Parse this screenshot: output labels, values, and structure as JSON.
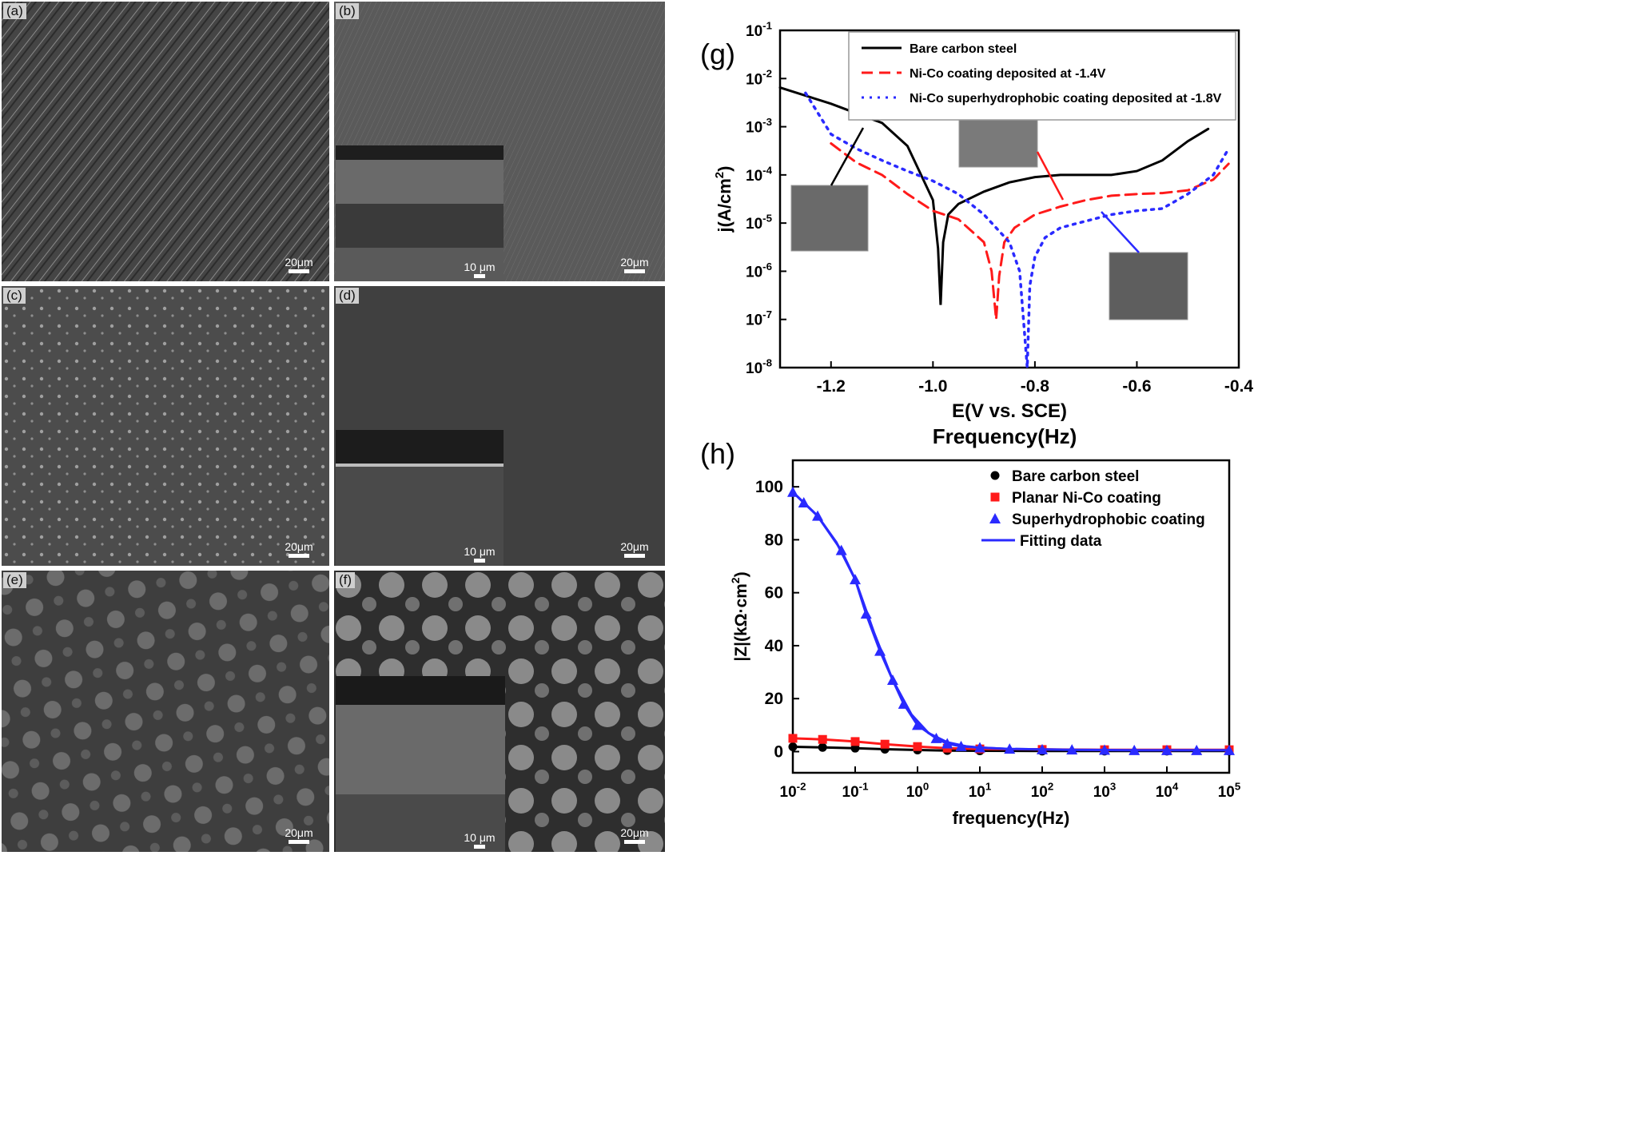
{
  "figure": {
    "panels": {
      "a": {
        "tag": "(a)",
        "scale": "20μm"
      },
      "b": {
        "tag": "(b)",
        "scale": "20μm",
        "inset_scale": "10 μm"
      },
      "c": {
        "tag": "(c)",
        "scale": "20μm"
      },
      "d": {
        "tag": "(d)",
        "scale": "20μm",
        "inset_scale": "10 μm"
      },
      "e": {
        "tag": "(e)",
        "scale": "20μm"
      },
      "f": {
        "tag": "(f)",
        "scale": "20μm",
        "inset_scale": "10 μm"
      }
    }
  },
  "colors": {
    "black": "#000000",
    "red": "#ff1a1a",
    "blue": "#2a2aff",
    "sem_bg": "#3a3a3a"
  },
  "chart_data": [
    {
      "type": "line",
      "panel_label": "(g)",
      "title": "",
      "xlabel": "E(V vs. SCE)",
      "ylabel": "j(A/cm2)",
      "xlim": [
        -1.3,
        -0.4
      ],
      "ylim": [
        1e-08,
        0.1
      ],
      "yscale": "log",
      "x_ticks": [
        "-1.2",
        "-1.0",
        "-0.8",
        "-0.6",
        "-0.4"
      ],
      "y_ticks": [
        "10-8",
        "10-7",
        "10-6",
        "10-5",
        "10-4",
        "10-3",
        "10-2",
        "10-1"
      ],
      "legend_position": "top-right",
      "series": [
        {
          "name": "Bare carbon steel",
          "style": "solid",
          "x": [
            -1.3,
            -1.2,
            -1.1,
            -1.05,
            -1.0,
            -0.99,
            -0.985,
            -0.98,
            -0.97,
            -0.95,
            -0.9,
            -0.85,
            -0.8,
            -0.75,
            -0.7,
            -0.65,
            -0.6,
            -0.55,
            -0.5,
            -0.46
          ],
          "y": [
            0.0065,
            0.003,
            0.0012,
            0.0004,
            3e-05,
            3e-06,
            2e-07,
            4e-06,
            1.5e-05,
            2.5e-05,
            4.5e-05,
            7e-05,
            9e-05,
            0.0001,
            0.0001,
            0.0001,
            0.00012,
            0.0002,
            0.0005,
            0.0009
          ]
        },
        {
          "name": "Ni-Co coating deposited at -1.4V",
          "style": "dashed",
          "x": [
            -1.2,
            -1.15,
            -1.1,
            -1.05,
            -1.0,
            -0.95,
            -0.9,
            -0.885,
            -0.876,
            -0.87,
            -0.86,
            -0.84,
            -0.8,
            -0.75,
            -0.7,
            -0.65,
            -0.6,
            -0.55,
            -0.5,
            -0.45,
            -0.42
          ],
          "y": [
            0.00045,
            0.00018,
            0.0001,
            4e-05,
            1.8e-05,
            1.2e-05,
            4e-06,
            1e-06,
            1e-07,
            8e-07,
            4e-06,
            8e-06,
            1.5e-05,
            2.2e-05,
            3e-05,
            3.7e-05,
            4e-05,
            4.2e-05,
            4.8e-05,
            8e-05,
            0.00017
          ]
        },
        {
          "name": "Ni-Co superhydrophobic coating deposited at -1.8V",
          "style": "dotted",
          "x": [
            -1.25,
            -1.2,
            -1.15,
            -1.1,
            -1.05,
            -1.0,
            -0.95,
            -0.9,
            -0.85,
            -0.83,
            -0.815,
            -0.81,
            -0.8,
            -0.78,
            -0.75,
            -0.7,
            -0.65,
            -0.6,
            -0.55,
            -0.5,
            -0.45,
            -0.42
          ],
          "y": [
            0.005,
            0.0007,
            0.00035,
            0.0002,
            0.00012,
            7.5e-05,
            4e-05,
            1.5e-05,
            4e-06,
            1e-06,
            1e-08,
            5e-07,
            2e-06,
            5e-06,
            8e-06,
            1.1e-05,
            1.5e-05,
            1.8e-05,
            2e-05,
            4e-05,
            0.0001,
            0.00035
          ]
        }
      ]
    },
    {
      "type": "scatter",
      "panel_label": "(h)",
      "title": "Frequency(Hz)",
      "xlabel": "frequency(Hz)",
      "ylabel": "|Z|(kΩ·cm2)",
      "xlim": [
        0.01,
        100000
      ],
      "ylim": [
        -8,
        110
      ],
      "xscale": "log",
      "x_ticks": [
        "10-2",
        "10-1",
        "100",
        "101",
        "102",
        "103",
        "104",
        "105"
      ],
      "y_ticks": [
        "0",
        "20",
        "40",
        "60",
        "80",
        "100"
      ],
      "legend_position": "top-right",
      "series": [
        {
          "name": "Bare carbon steel",
          "marker": "circle",
          "x": [
            0.01,
            0.03,
            0.1,
            0.3,
            1,
            3,
            10,
            100,
            1000,
            10000,
            100000
          ],
          "y": [
            1.8,
            1.6,
            1.3,
            0.9,
            0.6,
            0.4,
            0.3,
            0.2,
            0.2,
            0.2,
            0.2
          ]
        },
        {
          "name": "Planar Ni-Co coating",
          "marker": "square",
          "x": [
            0.01,
            0.03,
            0.1,
            0.3,
            1,
            3,
            10,
            100,
            1000,
            10000,
            100000
          ],
          "y": [
            5.0,
            4.6,
            3.8,
            2.8,
            1.9,
            1.3,
            1.0,
            0.8,
            0.7,
            0.7,
            0.7
          ]
        },
        {
          "name": "Superhydrophobic coating",
          "marker": "triangle",
          "x": [
            0.01,
            0.015,
            0.025,
            0.06,
            0.1,
            0.15,
            0.25,
            0.4,
            0.6,
            1,
            2,
            3,
            5,
            10,
            30,
            100,
            300,
            1000,
            3000,
            10000,
            30000,
            100000
          ],
          "y": [
            98,
            94,
            89,
            76,
            65,
            52,
            38,
            27,
            18,
            10,
            5,
            3,
            2,
            1.5,
            1,
            0.8,
            0.7,
            0.6,
            0.5,
            0.5,
            0.5,
            0.5
          ]
        },
        {
          "name": "Fitting data",
          "marker": "line",
          "x": [
            0.01,
            0.025,
            0.05,
            0.1,
            0.2,
            0.4,
            0.8,
            1.5,
            3,
            6,
            10,
            30,
            100,
            1000,
            10000,
            100000
          ],
          "y": [
            98,
            89,
            79,
            65,
            45,
            27,
            14,
            7,
            3.5,
            2,
            1.5,
            1,
            0.8,
            0.6,
            0.5,
            0.5
          ]
        }
      ]
    }
  ]
}
